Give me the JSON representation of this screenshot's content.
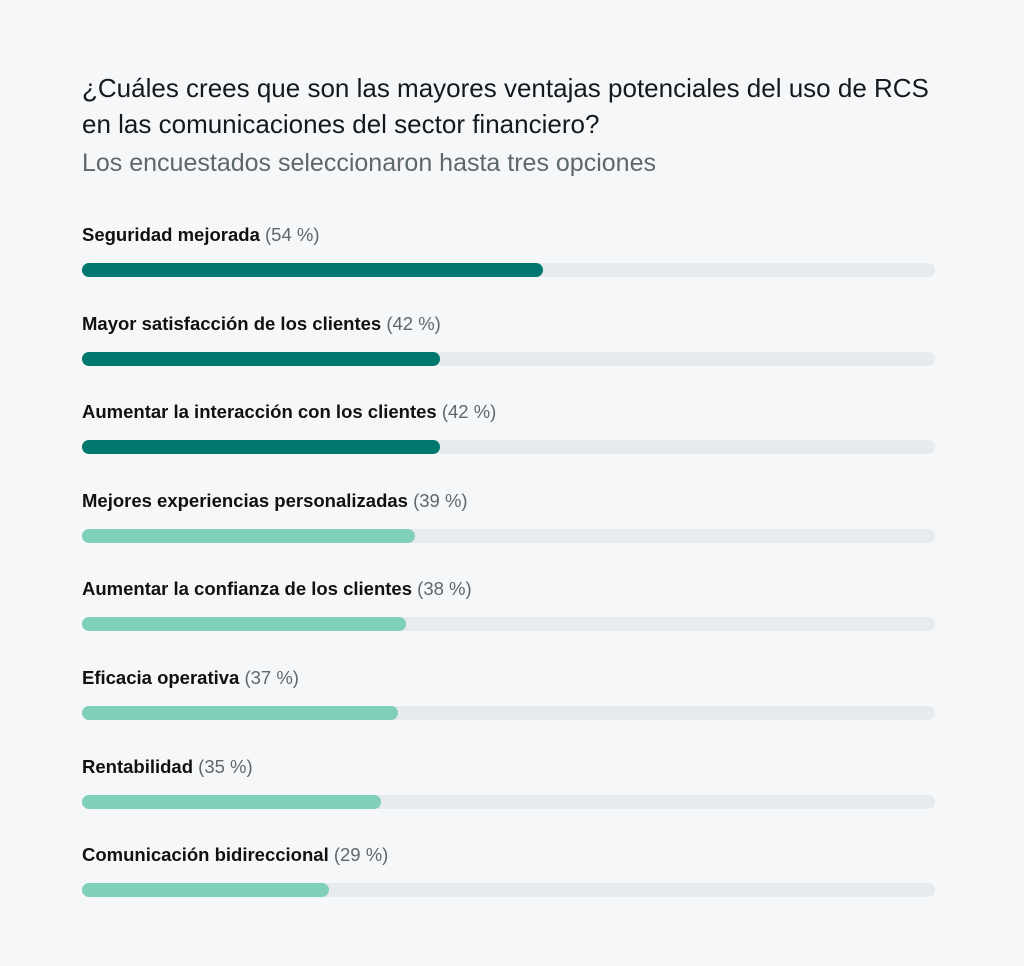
{
  "chart_data": {
    "type": "bar",
    "orientation": "horizontal",
    "title": "¿Cuáles crees que son las mayores ventajas potenciales del uso de RCS en las comunicaciones del sector financiero?",
    "subtitle": "Los encuestados seleccionaron hasta tres opciones",
    "xlim": [
      0,
      100
    ],
    "unit": "%",
    "categories": [
      "Seguridad mejorada",
      "Mayor satisfacción de los clientes",
      "Aumentar la interacción con los clientes",
      "Mejores experiencias personalizadas",
      "Aumentar la confianza de los clientes",
      "Eficacia operativa",
      "Rentabilidad",
      "Comunicación bidireccional"
    ],
    "values": [
      54,
      42,
      42,
      39,
      38,
      37,
      35,
      29
    ],
    "value_labels": [
      "(54 %)",
      "(42 %)",
      "(42 %)",
      "(39 %)",
      "(38 %)",
      "(37 %)",
      "(35 %)",
      "(29 %)"
    ],
    "highlight": [
      true,
      true,
      true,
      false,
      false,
      false,
      false,
      false
    ],
    "colors": {
      "highlight": "#00776f",
      "normal": "#80cfbb",
      "track": "#e8ebed"
    }
  }
}
